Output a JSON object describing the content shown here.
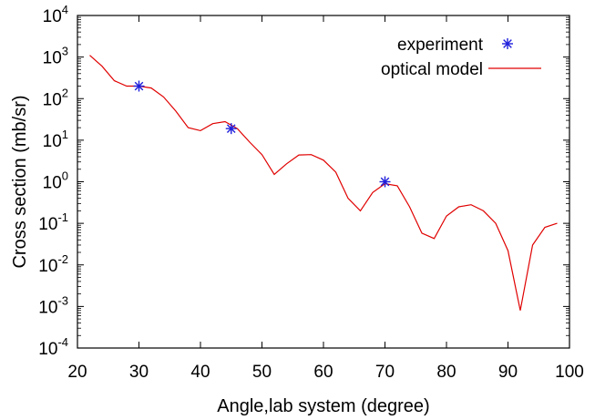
{
  "chart_data": {
    "type": "line",
    "title": "",
    "xlabel": "Angle,lab system (degree)",
    "ylabel": "Cross section (mb/sr)",
    "xlim": [
      20,
      100
    ],
    "ylim": [
      0.0001,
      10000
    ],
    "yscale": "log",
    "grid": false,
    "legend_position": "top-right",
    "x_ticks": [
      "20",
      "30",
      "40",
      "50",
      "60",
      "70",
      "80",
      "90",
      "100"
    ],
    "y_ticks": [
      {
        "base": "10",
        "exp": "-4",
        "value": 0.0001
      },
      {
        "base": "10",
        "exp": "-3",
        "value": 0.001
      },
      {
        "base": "10",
        "exp": "-2",
        "value": 0.01
      },
      {
        "base": "10",
        "exp": "-1",
        "value": 0.1
      },
      {
        "base": "10",
        "exp": "0",
        "value": 1
      },
      {
        "base": "10",
        "exp": "1",
        "value": 10
      },
      {
        "base": "10",
        "exp": "2",
        "value": 100
      },
      {
        "base": "10",
        "exp": "3",
        "value": 1000
      },
      {
        "base": "10",
        "exp": "4",
        "value": 10000
      }
    ],
    "series": [
      {
        "name": "experiment",
        "style": "points",
        "marker": "asterisk",
        "color": "#1f1fdc",
        "x": [
          30,
          45,
          70
        ],
        "y": [
          200,
          19,
          1.0
        ]
      },
      {
        "name": "optical model",
        "style": "line",
        "color": "#e00000",
        "x": [
          22,
          24,
          26,
          28,
          30,
          32,
          34,
          36,
          38,
          40,
          42,
          44,
          46,
          48,
          50,
          52,
          54,
          56,
          58,
          60,
          62,
          64,
          66,
          68,
          70,
          72,
          74,
          76,
          78,
          80,
          82,
          84,
          86,
          88,
          90,
          92,
          94,
          96,
          98
        ],
        "y": [
          1100,
          600,
          270,
          200,
          200,
          180,
          110,
          50,
          20,
          17,
          25,
          28,
          19,
          9,
          4.5,
          1.5,
          2.7,
          4.4,
          4.5,
          3.3,
          1.7,
          0.4,
          0.2,
          0.55,
          0.9,
          0.8,
          0.25,
          0.058,
          0.043,
          0.15,
          0.25,
          0.28,
          0.2,
          0.1,
          0.022,
          0.0008,
          0.03,
          0.08,
          0.1
        ]
      }
    ]
  }
}
